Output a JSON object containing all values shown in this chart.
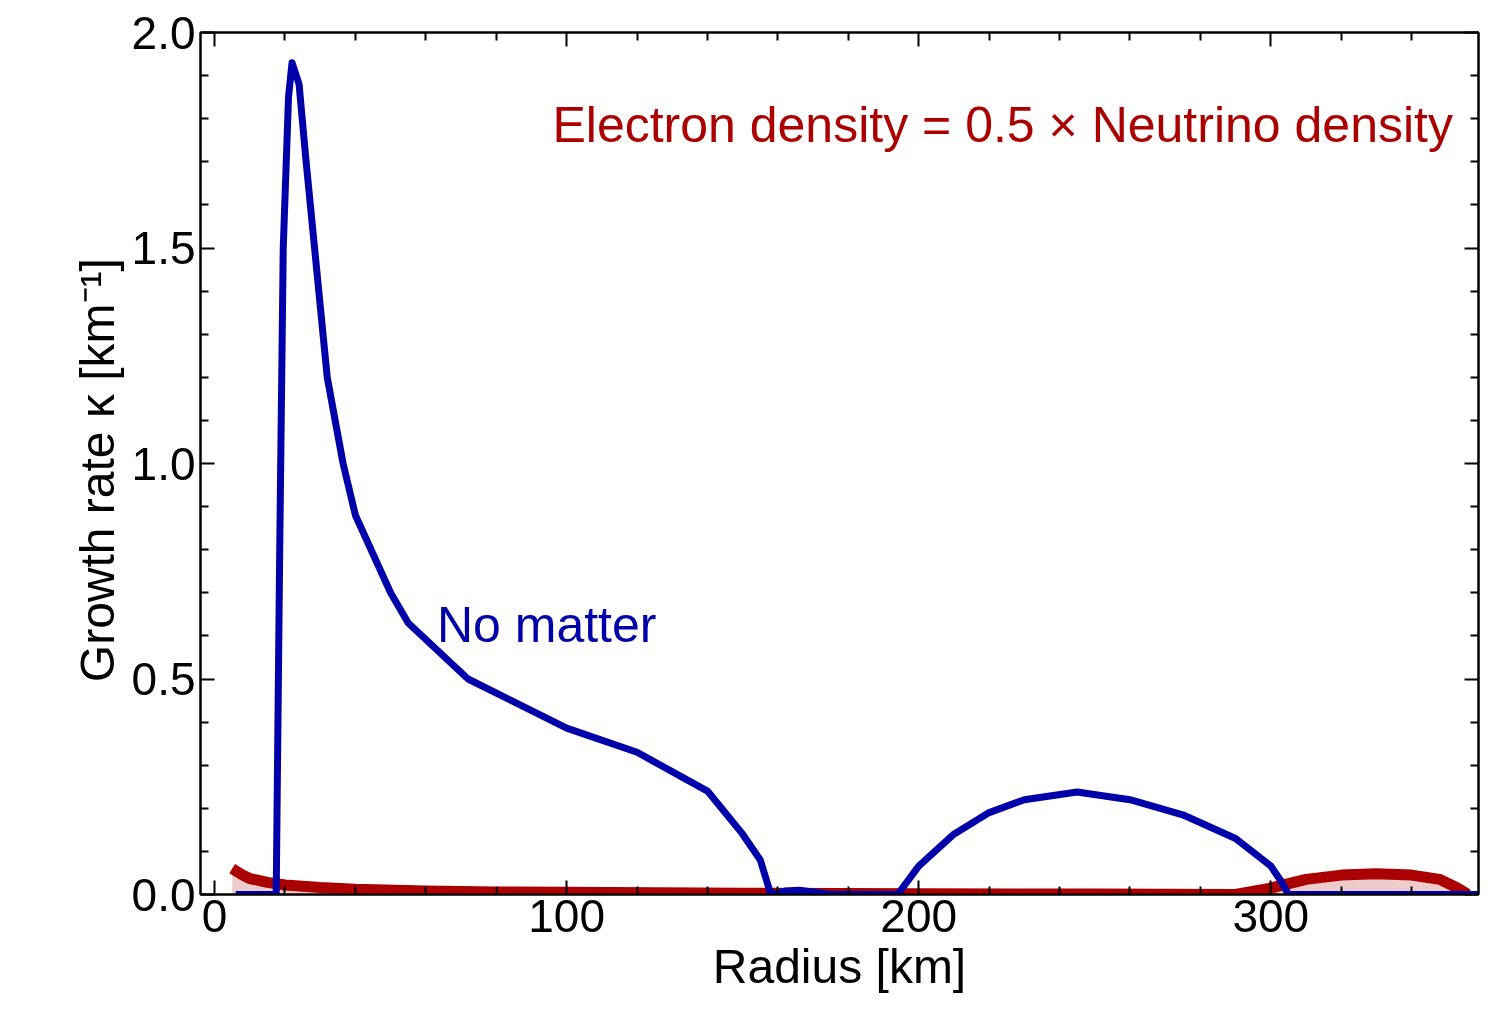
{
  "chart_data": {
    "type": "line",
    "xlabel": "Radius [km]",
    "ylabel": "Growth rate  κ [km⁻¹]",
    "xlim": [
      -4,
      359
    ],
    "ylim": [
      0,
      2.0
    ],
    "xticks": [
      0,
      {
        "value": 20,
        "label": null
      },
      {
        "value": 40,
        "label": null
      },
      {
        "value": 60,
        "label": null
      },
      {
        "value": 80,
        "label": null
      },
      100,
      {
        "value": 120,
        "label": null
      },
      {
        "value": 140,
        "label": null
      },
      {
        "value": 160,
        "label": null
      },
      {
        "value": 180,
        "label": null
      },
      200,
      {
        "value": 220,
        "label": null
      },
      {
        "value": 240,
        "label": null
      },
      {
        "value": 260,
        "label": null
      },
      {
        "value": 280,
        "label": null
      },
      300,
      {
        "value": 320,
        "label": null
      },
      {
        "value": 340,
        "label": null
      }
    ],
    "yticks": [
      {
        "value": 0,
        "label": "0.0"
      },
      {
        "value": 0.1,
        "label": null
      },
      {
        "value": 0.2,
        "label": null
      },
      {
        "value": 0.3,
        "label": null
      },
      {
        "value": 0.4,
        "label": null
      },
      0.5,
      {
        "value": 0.6,
        "label": null
      },
      {
        "value": 0.7,
        "label": null
      },
      {
        "value": 0.8,
        "label": null
      },
      {
        "value": 0.9,
        "label": null
      },
      {
        "value": 1,
        "label": "1.0"
      },
      {
        "value": 1.1,
        "label": null
      },
      {
        "value": 1.2,
        "label": null
      },
      {
        "value": 1.3,
        "label": null
      },
      {
        "value": 1.4,
        "label": null
      },
      1.5,
      {
        "value": 1.6,
        "label": null
      },
      {
        "value": 1.7,
        "label": null
      },
      {
        "value": 1.8,
        "label": null
      },
      {
        "value": 1.9,
        "label": null
      },
      {
        "value": 2,
        "label": "2.0"
      }
    ],
    "grid": false,
    "series": [
      {
        "name": "Electron density = 0.5 × Neutrino density",
        "type": "area",
        "color": "#aa0000",
        "x": [
          5,
          8,
          10,
          15,
          20,
          30,
          40,
          60,
          80,
          100,
          150,
          200,
          250,
          290,
          300,
          310,
          320,
          330,
          340,
          348,
          353,
          356
        ],
        "values": [
          0.06,
          0.045,
          0.037,
          0.028,
          0.022,
          0.016,
          0.012,
          0.008,
          0.006,
          0.005,
          0.003,
          0.002,
          0.001,
          0,
          0.015,
          0.035,
          0.045,
          0.048,
          0.045,
          0.035,
          0.015,
          0
        ]
      },
      {
        "name": "No matter",
        "color": "#0000aa",
        "x": [
          6,
          17.5,
          18.5,
          19.5,
          21,
          22,
          24,
          26,
          29,
          32,
          36.5,
          40,
          50,
          55,
          72,
          100,
          120,
          140,
          150,
          155,
          158,
          162,
          166,
          170,
          175,
          194,
          200,
          210,
          220,
          230,
          245,
          260,
          275,
          290,
          300,
          303,
          305,
          359
        ],
        "values": [
          0,
          0,
          0.8,
          1.5,
          1.85,
          1.93,
          1.88,
          1.7,
          1.45,
          1.2,
          1.0,
          0.88,
          0.7,
          0.63,
          0.5,
          0.386,
          0.33,
          0.24,
          0.14,
          0.08,
          0,
          0.008,
          0.01,
          0.006,
          0,
          0,
          0.066,
          0.14,
          0.19,
          0.22,
          0.238,
          0.22,
          0.185,
          0.13,
          0.066,
          0.03,
          0,
          0
        ]
      }
    ]
  }
}
